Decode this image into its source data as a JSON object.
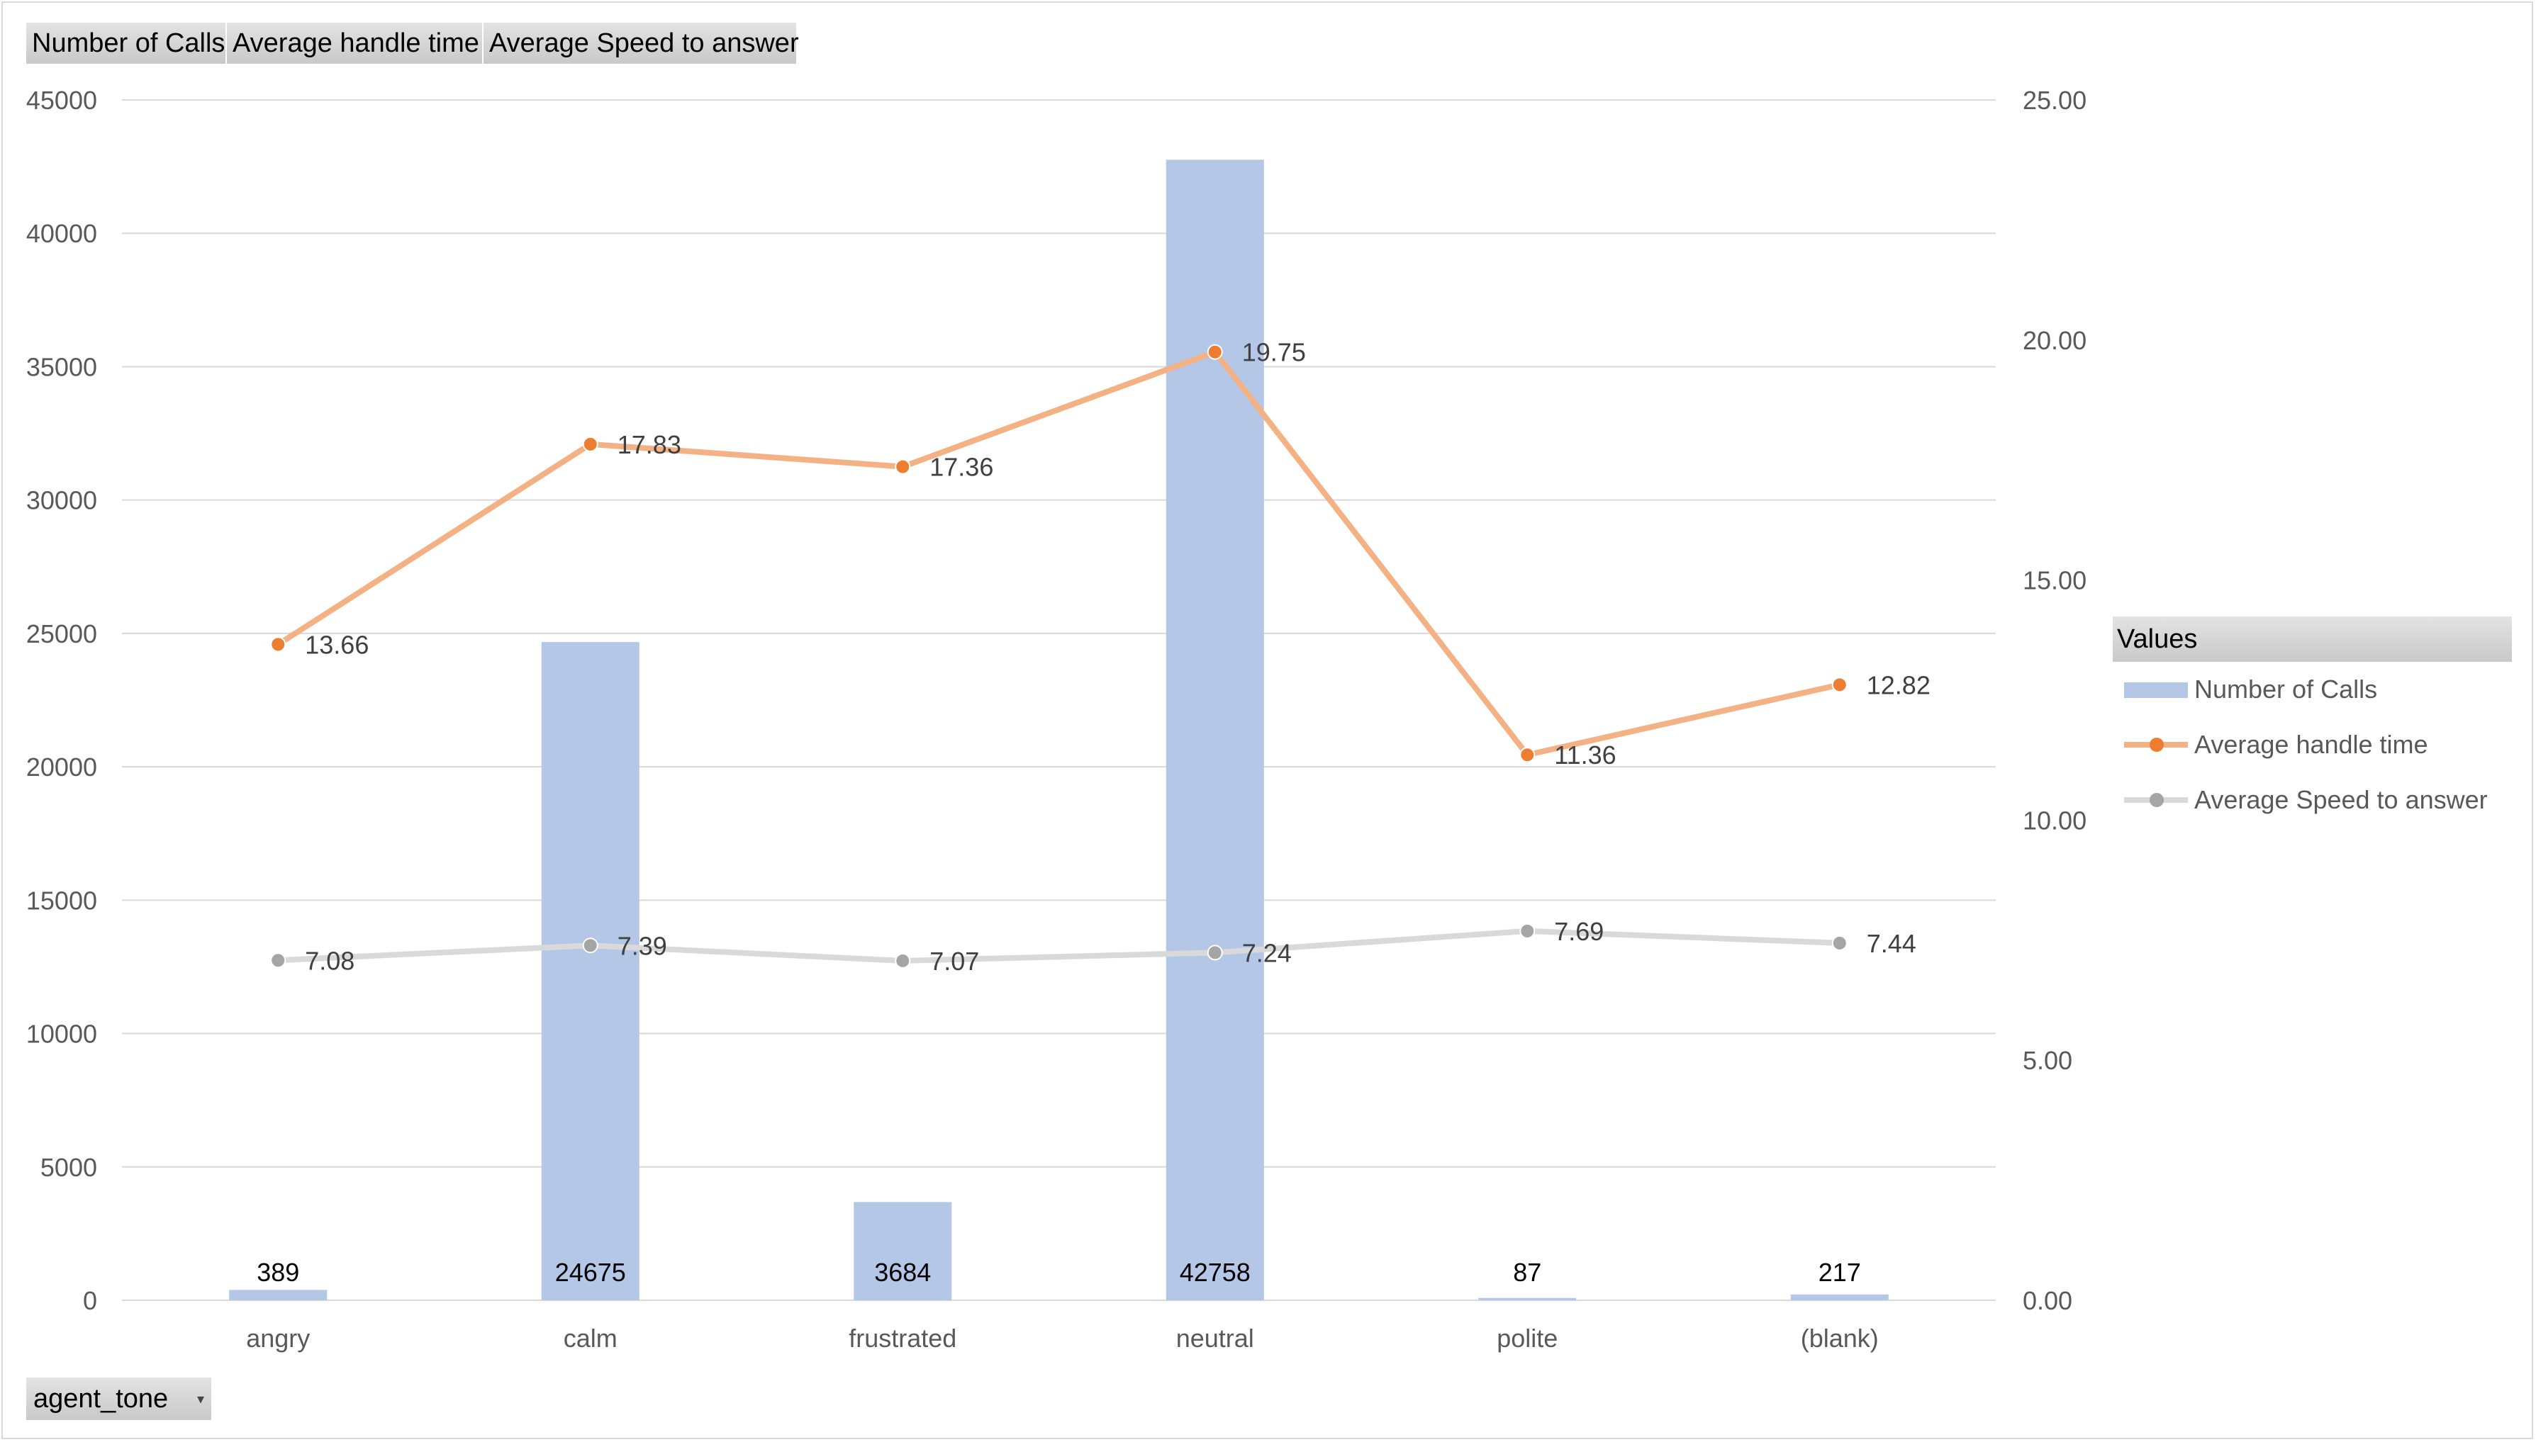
{
  "field_buttons": [
    "Number of Calls",
    "Average handle time",
    "Average Speed to answer"
  ],
  "axis_field": {
    "label": "agent_tone",
    "dropdown_icon": "dropdown-arrow-icon"
  },
  "legend": {
    "title": "Values",
    "items": [
      "Number of Calls",
      "Average handle time",
      "Average Speed to answer"
    ]
  },
  "colors": {
    "bars": "#b4c7e7",
    "handle_time": "#f4b183",
    "handle_time_marker": "#ed7d31",
    "speed_to_answer": "#d9d9d9",
    "speed_to_answer_marker": "#a5a5a5",
    "grid": "#d9d9d9",
    "text": "#595959"
  },
  "chart_data": {
    "type": "bar",
    "categories": [
      "angry",
      "calm",
      "frustrated",
      "neutral",
      "polite",
      "(blank)"
    ],
    "series": [
      {
        "name": "Number of Calls",
        "type": "bar",
        "axis": "primary",
        "values": [
          389,
          24675,
          3684,
          42758,
          87,
          217
        ],
        "labels": [
          "389",
          "24675",
          "3684",
          "42758",
          "87",
          "217"
        ]
      },
      {
        "name": "Average handle time",
        "type": "line",
        "axis": "secondary",
        "values": [
          13.66,
          17.83,
          17.36,
          19.75,
          11.36,
          12.82
        ],
        "labels": [
          "13.66",
          "17.83",
          "17.36",
          "19.75",
          "11.36",
          "12.82"
        ]
      },
      {
        "name": "Average Speed to answer",
        "type": "line",
        "axis": "secondary",
        "values": [
          7.08,
          7.39,
          7.07,
          7.24,
          7.69,
          7.44
        ],
        "labels": [
          "7.08",
          "7.39",
          "7.07",
          "7.24",
          "7.69",
          "7.44"
        ]
      }
    ],
    "y_primary": {
      "range": [
        0,
        45000
      ],
      "ticks": [
        0,
        5000,
        10000,
        15000,
        20000,
        25000,
        30000,
        35000,
        40000,
        45000
      ],
      "tick_labels": [
        "0",
        "5000",
        "10000",
        "15000",
        "20000",
        "25000",
        "30000",
        "35000",
        "40000",
        "45000"
      ]
    },
    "y_secondary": {
      "range": [
        0,
        25
      ],
      "ticks": [
        0,
        5,
        10,
        15,
        20,
        25
      ],
      "tick_labels": [
        "0.00",
        "5.00",
        "10.00",
        "15.00",
        "20.00",
        "25.00"
      ]
    },
    "grid": true,
    "legend_position": "right",
    "title": "",
    "xlabel": "",
    "ylabel": ""
  }
}
